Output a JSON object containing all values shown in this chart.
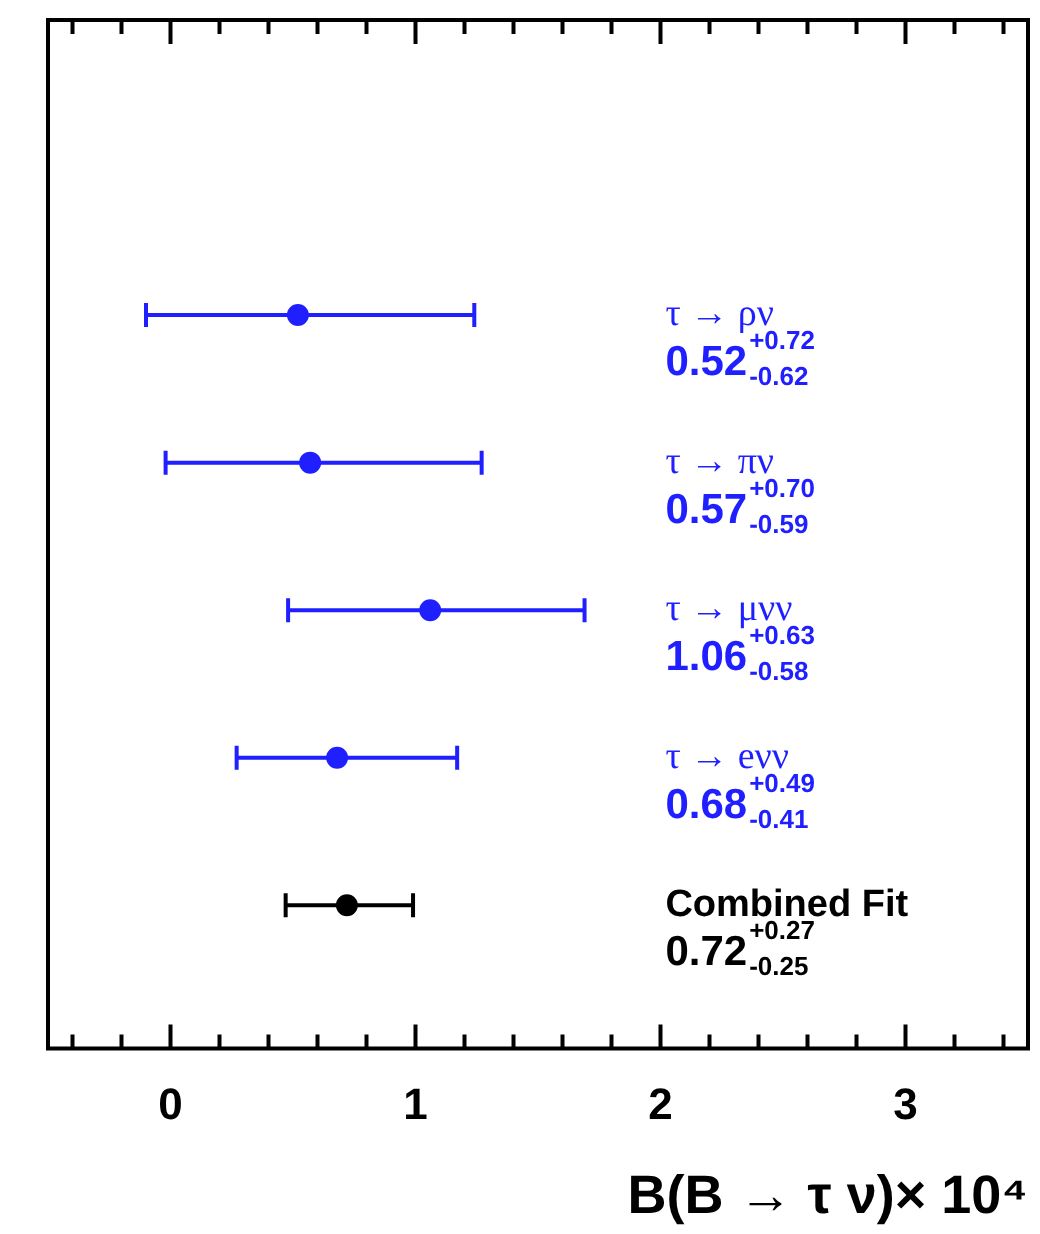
{
  "chart_data": {
    "type": "scatter",
    "orientation": "horizontal",
    "categories": [
      "τ → ρν",
      "τ → πν",
      "τ → μνν",
      "τ → eνν",
      "Combined Fit"
    ],
    "values": [
      0.52,
      0.57,
      1.06,
      0.68,
      0.72
    ],
    "colors": [
      "#1f1fff",
      "#1f1fff",
      "#1f1fff",
      "#1f1fff",
      "#000000"
    ],
    "errors": [
      [
        -0.1,
        1.24
      ],
      [
        -0.02,
        1.27
      ],
      [
        0.48,
        1.69
      ],
      [
        0.27,
        1.17
      ],
      [
        0.47,
        0.99
      ]
    ],
    "annotations": [
      "0.52$^{+0.72}$$_{-0.62}$",
      "0.57$^{+0.70}$$_{-0.59}$",
      "1.06$^{+0.63}$$_{-0.58}$",
      "0.68$^{+0.49}$$_{-0.41}$",
      "0.72$^{+0.27}$$_{-0.25}$"
    ],
    "xlabel": "B(B → τ ν)× 10⁴",
    "xlim": [
      -0.5,
      3.5
    ],
    "xticks": [
      {
        "value": -0.4,
        "label": null
      },
      {
        "value": -0.2,
        "label": null
      },
      0,
      {
        "value": 0.2,
        "label": null
      },
      {
        "value": 0.4,
        "label": null
      },
      {
        "value": 0.6,
        "label": null
      },
      {
        "value": 0.8,
        "label": null
      },
      1,
      {
        "value": 1.2,
        "label": null
      },
      {
        "value": 1.4,
        "label": null
      },
      {
        "value": 1.6,
        "label": null
      },
      {
        "value": 1.8,
        "label": null
      },
      2,
      {
        "value": 2.2,
        "label": null
      },
      {
        "value": 2.4,
        "label": null
      },
      {
        "value": 2.6,
        "label": null
      },
      {
        "value": 2.8,
        "label": null
      },
      3,
      {
        "value": 3.2,
        "label": null
      },
      {
        "value": 3.4,
        "label": null
      }
    ],
    "grid": false,
    "legend": false,
    "marker": "circle"
  }
}
